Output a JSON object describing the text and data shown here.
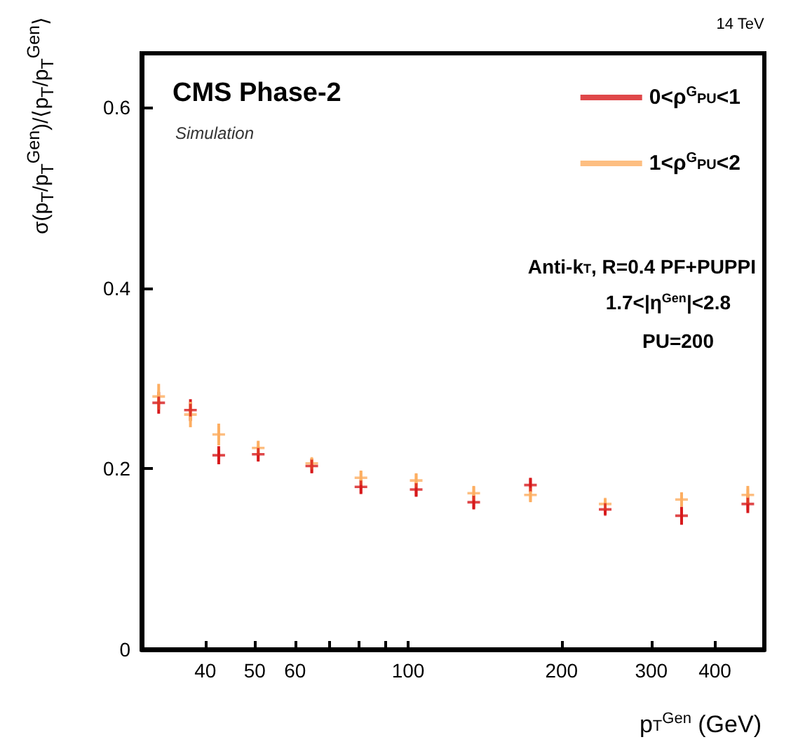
{
  "chart_data": {
    "type": "scatter",
    "title": "CMS Phase-2",
    "subtitle": "Simulation",
    "xlabel": "p$_{T}$$^{Gen}$ (GeV)",
    "ylabel": "σ(p$_{T}$/p$_{T}$$^{Gen}$)/⟨p$_{T}$/p$_{T}$$^{Gen}$⟩",
    "annotations": [
      "14 TeV",
      "Anti-k$_{T}$, R=0.4 PF+PUPPI",
      "1.7<|η$^{Gen}$|<2.8",
      "PU=200"
    ],
    "x": [
      32.4,
      37.4,
      42.5,
      50.8,
      64.7,
      80.8,
      103.7,
      134.5,
      173.8,
      243.6,
      344,
      464
    ],
    "series": [
      {
        "name": "0<ρ$^{G}$$_{PU}$<1",
        "color": "#d7191c",
        "values": [
          0.273,
          0.265,
          0.215,
          0.216,
          0.203,
          0.18,
          0.177,
          0.163,
          0.182,
          0.155,
          0.148,
          0.161
        ],
        "errors": [
          0.012,
          0.012,
          0.01,
          0.008,
          0.008,
          0.008,
          0.008,
          0.008,
          0.008,
          0.006,
          0.01,
          0.01
        ]
      },
      {
        "name": "1<ρ$^{G}$$_{PU}$<2",
        "color": "#fdae61",
        "values": [
          0.28,
          0.26,
          0.238,
          0.223,
          0.206,
          0.19,
          0.187,
          0.173,
          0.171,
          0.161,
          0.166,
          0.171
        ],
        "errors": [
          0.014,
          0.014,
          0.012,
          0.008,
          0.006,
          0.008,
          0.008,
          0.008,
          0.008,
          0.006,
          0.008,
          0.01
        ]
      }
    ],
    "xlim": [
      30,
      500
    ],
    "xticks": [
      40,
      50,
      60,
      {
        "value": 70,
        "label": null
      },
      {
        "value": 80,
        "label": null
      },
      {
        "value": 90,
        "label": null
      },
      100,
      200,
      300,
      400
    ],
    "ylim": [
      0,
      0.66
    ],
    "yticks": [
      0,
      0.2,
      0.4,
      0.6
    ],
    "log": "x",
    "legend": "top right",
    "marker": "cross",
    "grid": false
  }
}
